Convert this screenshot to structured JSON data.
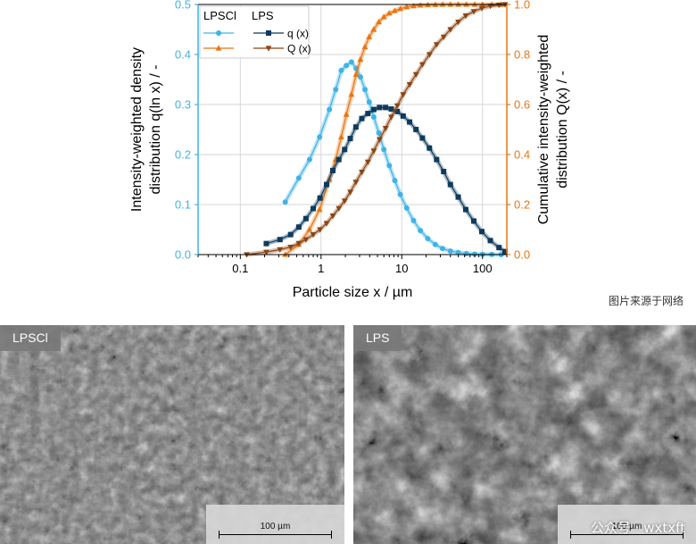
{
  "chart_data": {
    "type": "line",
    "x_scale": "log",
    "xlim": [
      0.03,
      200
    ],
    "ylim_left": [
      0,
      0.5
    ],
    "ylim_right": [
      0,
      1.0
    ],
    "xlabel": "Particle size x / µm",
    "ylabel_left": [
      "Intensity-weighted density",
      "distribution q(ln x) / -"
    ],
    "ylabel_right": [
      "Cumulative intensity-weighted",
      "distribution Q(x) / -"
    ],
    "x_ticks": [
      {
        "value": 0.1,
        "label": "0.1"
      },
      {
        "value": 1,
        "label": "1"
      },
      {
        "value": 10,
        "label": "10"
      },
      {
        "value": 100,
        "label": "100"
      }
    ],
    "y_ticks_left": [
      "0.0",
      "0.1",
      "0.2",
      "0.3",
      "0.4",
      "0.5"
    ],
    "y_ticks_right": [
      "0.0",
      "0.2",
      "0.4",
      "0.6",
      "0.8",
      "1.0"
    ],
    "legend": {
      "placement": "top-left",
      "group_labels": [
        "LPSCl",
        "LPS"
      ],
      "entry_labels": [
        "q (x)",
        "Q (x)"
      ]
    },
    "series": [
      {
        "name": "LPSCl q (x)",
        "axis": "left",
        "color": "#3FB3E6",
        "marker": "circle",
        "x": [
          0.36,
          0.53,
          0.72,
          0.96,
          1.27,
          1.52,
          1.78,
          2.06,
          2.38,
          2.72,
          3.08,
          3.5,
          3.95,
          4.5,
          5.2,
          6.0,
          7.0,
          8.2,
          9.6,
          11.5,
          14,
          17,
          21,
          26,
          32,
          40,
          50,
          63,
          80,
          100,
          130,
          170
        ],
        "y": [
          0.105,
          0.153,
          0.19,
          0.235,
          0.29,
          0.33,
          0.368,
          0.378,
          0.385,
          0.372,
          0.355,
          0.33,
          0.305,
          0.275,
          0.243,
          0.21,
          0.178,
          0.148,
          0.12,
          0.093,
          0.068,
          0.048,
          0.032,
          0.02,
          0.012,
          0.007,
          0.004,
          0.002,
          0.001,
          0.0005,
          0.0002,
          0.0001
        ]
      },
      {
        "name": "LPSCl Q (x)",
        "axis": "right",
        "color": "#E87511",
        "marker": "triangle-up",
        "x": [
          0.36,
          0.53,
          0.72,
          0.96,
          1.27,
          1.52,
          1.78,
          2.06,
          2.38,
          2.72,
          3.08,
          3.5,
          3.95,
          4.5,
          5.2,
          6.0,
          7.0,
          8.2,
          9.6,
          11.5,
          14,
          17,
          21,
          26,
          32,
          40,
          50,
          63,
          80,
          100,
          130,
          170
        ],
        "y": [
          0.0,
          0.04,
          0.1,
          0.18,
          0.3,
          0.38,
          0.47,
          0.56,
          0.64,
          0.72,
          0.78,
          0.83,
          0.87,
          0.9,
          0.93,
          0.95,
          0.965,
          0.975,
          0.983,
          0.99,
          0.994,
          0.997,
          0.998,
          0.999,
          1.0,
          1.0,
          1.0,
          1.0,
          1.0,
          1.0,
          1.0,
          1.0
        ]
      },
      {
        "name": "LPS q (x)",
        "axis": "left",
        "color": "#0E3B5C",
        "marker": "square",
        "x": [
          0.21,
          0.31,
          0.42,
          0.53,
          0.65,
          0.8,
          0.97,
          1.17,
          1.4,
          1.66,
          1.96,
          2.3,
          2.7,
          3.2,
          3.8,
          4.5,
          5.3,
          6.3,
          7.4,
          8.8,
          10.4,
          12.5,
          15,
          18,
          22,
          27,
          33,
          40,
          50,
          62,
          78,
          98,
          125,
          160,
          190
        ],
        "y": [
          0.022,
          0.03,
          0.04,
          0.055,
          0.072,
          0.092,
          0.113,
          0.14,
          0.168,
          0.19,
          0.21,
          0.232,
          0.255,
          0.272,
          0.282,
          0.29,
          0.294,
          0.294,
          0.291,
          0.286,
          0.277,
          0.265,
          0.25,
          0.233,
          0.213,
          0.19,
          0.166,
          0.14,
          0.115,
          0.09,
          0.067,
          0.046,
          0.028,
          0.014,
          0.006
        ]
      },
      {
        "name": "LPS Q (x)",
        "axis": "right",
        "color": "#8B4513",
        "marker": "triangle-down",
        "x": [
          0.12,
          0.21,
          0.31,
          0.42,
          0.53,
          0.65,
          0.8,
          0.97,
          1.17,
          1.4,
          1.66,
          1.96,
          2.3,
          2.7,
          3.2,
          3.8,
          4.5,
          5.3,
          6.3,
          7.4,
          8.8,
          10.4,
          12.5,
          15,
          18,
          22,
          27,
          33,
          40,
          50,
          62,
          78,
          98,
          125,
          160,
          190
        ],
        "y": [
          0.0,
          0.01,
          0.02,
          0.03,
          0.045,
          0.06,
          0.08,
          0.1,
          0.125,
          0.155,
          0.185,
          0.215,
          0.25,
          0.29,
          0.33,
          0.37,
          0.415,
          0.46,
          0.505,
          0.55,
          0.595,
          0.64,
          0.68,
          0.72,
          0.76,
          0.8,
          0.84,
          0.87,
          0.9,
          0.93,
          0.955,
          0.972,
          0.985,
          0.994,
          0.998,
          1.0
        ]
      }
    ]
  },
  "watermark_top": "图片来源于网络",
  "sem_images": [
    {
      "label": "LPSCl",
      "scale_label": "100 µm"
    },
    {
      "label": "LPS",
      "scale_label": "100 µm"
    }
  ],
  "watermark_bottom": "公众号 · wxtxft"
}
